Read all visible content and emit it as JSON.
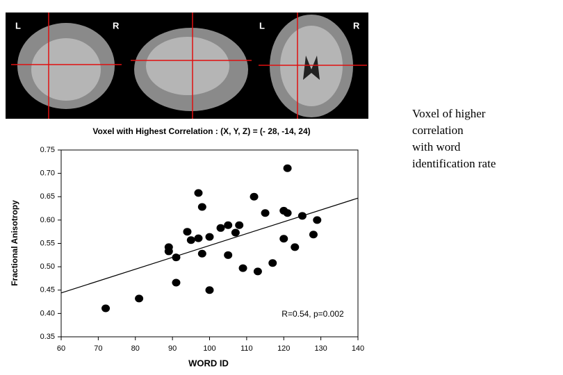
{
  "brain_panels": {
    "labels": [
      "L",
      "R",
      "L",
      "R"
    ]
  },
  "chart_data": {
    "type": "scatter",
    "title": "Voxel with Highest Correlation : (X, Y, Z) = (- 28, -14, 24)",
    "x_label": "WORD ID",
    "y_label": "Fractional Anisotropy",
    "annotation": "R=0.54, p=0.002",
    "color": "#000000",
    "x": [
      72,
      81,
      89,
      89,
      91,
      91,
      94,
      95,
      97,
      97,
      98,
      98,
      100,
      100,
      103,
      105,
      105,
      107,
      108,
      109,
      112,
      113,
      115,
      117,
      120,
      120,
      121,
      121,
      123,
      125,
      128,
      129
    ],
    "values": [
      0.411,
      0.432,
      0.542,
      0.533,
      0.52,
      0.466,
      0.575,
      0.557,
      0.658,
      0.561,
      0.628,
      0.528,
      0.564,
      0.45,
      0.583,
      0.589,
      0.525,
      0.573,
      0.589,
      0.497,
      0.65,
      0.49,
      0.615,
      0.508,
      0.62,
      0.56,
      0.711,
      0.615,
      0.542,
      0.609,
      0.569,
      0.6
    ],
    "trendline": {
      "x": [
        60,
        140
      ],
      "y": [
        0.444,
        0.647
      ]
    },
    "xlim": [
      60,
      140
    ],
    "ylim": [
      0.35,
      0.75
    ],
    "xticks": [
      60,
      70,
      80,
      90,
      100,
      110,
      120,
      130,
      140
    ],
    "yticks": [
      0.35,
      {
        "value": 0.4,
        "label": "0.40"
      },
      0.45,
      {
        "value": 0.5,
        "label": "0.50"
      },
      0.55,
      {
        "value": 0.6,
        "label": "0.60"
      },
      0.65,
      {
        "value": 0.7,
        "label": "0.70"
      },
      0.75
    ]
  },
  "side_note": {
    "lines": [
      "Voxel of higher",
      "correlation",
      "with word",
      "identification rate"
    ]
  }
}
